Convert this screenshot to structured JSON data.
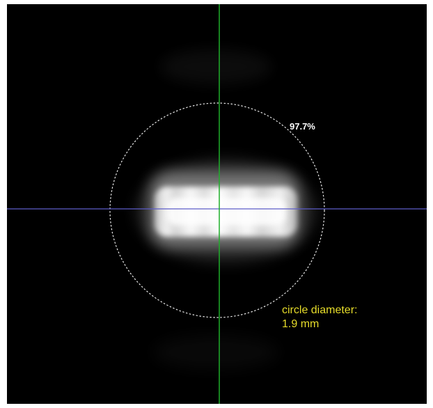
{
  "measurement": {
    "enclosed_energy_label": "97.7%",
    "circle_label_line1": "circle diameter:",
    "circle_label_line2": "1.9 mm"
  },
  "colors": {
    "background": "#000000",
    "vertical_crosshair": "#1fae2a",
    "horizontal_crosshair": "#5c5cc8",
    "circle_outline": "#e8e8e8",
    "annotation_text": "#e6dc2a",
    "percent_text": "#ffffff"
  }
}
